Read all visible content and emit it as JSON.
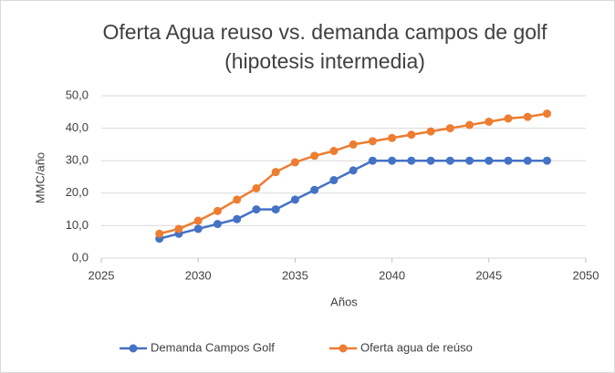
{
  "chart_data": {
    "type": "line",
    "title": "Oferta Agua reuso vs. demanda campos de golf (hipotesis intermedia)",
    "x_label": "Años",
    "y_label": "MMC/año",
    "x": [
      2028,
      2029,
      2030,
      2031,
      2032,
      2033,
      2034,
      2035,
      2036,
      2037,
      2038,
      2039,
      2040,
      2041,
      2042,
      2043,
      2044,
      2045,
      2046,
      2047,
      2048
    ],
    "series": [
      {
        "name": "Demanda Campos Golf",
        "color": "#4472c4",
        "values": [
          6,
          7.5,
          9,
          10.5,
          12,
          15,
          15,
          18,
          21,
          24,
          27,
          30,
          30,
          30,
          30,
          30,
          30,
          30,
          30,
          30,
          30
        ]
      },
      {
        "name": "Oferta agua de reúso",
        "color": "#ed7d31",
        "values": [
          7.5,
          9,
          11.5,
          14.5,
          18,
          21.5,
          26.5,
          29.5,
          31.5,
          33,
          35,
          36,
          37,
          38,
          39,
          40,
          41,
          42,
          43,
          43.5,
          44.5
        ]
      }
    ],
    "xlim": [
      2025,
      2050
    ],
    "xticks": [
      2025,
      2030,
      2035,
      2040,
      2045,
      2050
    ],
    "ylim": [
      0,
      50
    ],
    "yticks": [
      {
        "value": 0,
        "label": "0,0"
      },
      {
        "value": 10,
        "label": "10,0"
      },
      {
        "value": 20,
        "label": "20,0"
      },
      {
        "value": 30,
        "label": "30,0"
      },
      {
        "value": 40,
        "label": "40,0"
      },
      {
        "value": 50,
        "label": "50,0"
      }
    ],
    "grid": true,
    "legend": "bottom"
  }
}
